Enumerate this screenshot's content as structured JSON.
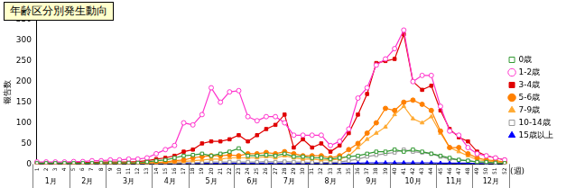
{
  "chart_data": {
    "type": "line",
    "title": "年齢区分別発生動向",
    "y_label": "報告数",
    "x_label": "(週)",
    "categories": [
      "1",
      "2",
      "3",
      "4",
      "5",
      "6",
      "7",
      "8",
      "9",
      "10",
      "11",
      "12",
      "13",
      "14",
      "15",
      "16",
      "17",
      "18",
      "19",
      "20",
      "21",
      "22",
      "23",
      "24",
      "25",
      "26",
      "27",
      "28",
      "29",
      "30",
      "31",
      "32",
      "33",
      "34",
      "35",
      "36",
      "37",
      "38",
      "39",
      "40",
      "41",
      "42",
      "43",
      "44",
      "45",
      "46",
      "47",
      "48",
      "49",
      "50",
      "51",
      "52"
    ],
    "months": [
      {
        "label": "1月",
        "weeks": [
          1,
          4
        ]
      },
      {
        "label": "2月",
        "weeks": [
          5,
          8
        ]
      },
      {
        "label": "3月",
        "weeks": [
          9,
          13
        ]
      },
      {
        "label": "4月",
        "weeks": [
          14,
          17
        ]
      },
      {
        "label": "5月",
        "weeks": [
          18,
          22
        ]
      },
      {
        "label": "6月",
        "weeks": [
          23,
          26
        ]
      },
      {
        "label": "7月",
        "weeks": [
          27,
          30
        ]
      },
      {
        "label": "8月",
        "weeks": [
          31,
          35
        ]
      },
      {
        "label": "9月",
        "weeks": [
          36,
          39
        ]
      },
      {
        "label": "10月",
        "weeks": [
          40,
          44
        ]
      },
      {
        "label": "11月",
        "weeks": [
          45,
          48
        ]
      },
      {
        "label": "12月",
        "weeks": [
          49,
          52
        ]
      }
    ],
    "series": [
      {
        "name": "0歳",
        "color": "#339933",
        "marker": "square-open",
        "values": [
          2,
          2,
          2,
          2,
          2,
          2,
          2,
          3,
          3,
          3,
          3,
          3,
          5,
          8,
          10,
          15,
          20,
          22,
          25,
          20,
          25,
          30,
          38,
          20,
          20,
          22,
          20,
          25,
          18,
          18,
          15,
          15,
          12,
          15,
          18,
          20,
          25,
          30,
          30,
          35,
          30,
          35,
          30,
          25,
          20,
          15,
          10,
          8,
          5,
          5,
          3,
          2
        ]
      },
      {
        "name": "1-2歳",
        "color": "#ff33cc",
        "marker": "circle-open",
        "values": [
          5,
          5,
          5,
          5,
          6,
          6,
          8,
          8,
          10,
          10,
          12,
          12,
          15,
          25,
          35,
          45,
          100,
          95,
          120,
          185,
          150,
          175,
          178,
          115,
          105,
          115,
          115,
          100,
          70,
          70,
          70,
          70,
          45,
          55,
          85,
          160,
          185,
          240,
          255,
          280,
          325,
          200,
          215,
          215,
          140,
          80,
          70,
          40,
          25,
          20,
          15,
          10
        ]
      },
      {
        "name": "3-4歳",
        "color": "#e00000",
        "marker": "square",
        "values": [
          3,
          3,
          3,
          3,
          4,
          4,
          4,
          5,
          5,
          5,
          5,
          6,
          8,
          12,
          15,
          20,
          30,
          35,
          50,
          55,
          55,
          60,
          70,
          55,
          70,
          85,
          95,
          120,
          40,
          60,
          40,
          50,
          30,
          45,
          75,
          120,
          170,
          245,
          250,
          255,
          315,
          200,
          180,
          190,
          130,
          85,
          65,
          55,
          30,
          20,
          15,
          10
        ]
      },
      {
        "name": "5-6歳",
        "color": "#ff8000",
        "marker": "circle",
        "values": [
          1,
          1,
          1,
          1,
          1,
          1,
          2,
          2,
          2,
          2,
          2,
          3,
          3,
          4,
          5,
          8,
          10,
          15,
          18,
          20,
          20,
          22,
          20,
          25,
          25,
          28,
          25,
          30,
          25,
          20,
          20,
          20,
          15,
          20,
          35,
          50,
          75,
          100,
          135,
          130,
          150,
          155,
          145,
          130,
          80,
          40,
          40,
          25,
          15,
          10,
          8,
          5
        ]
      },
      {
        "name": "7-9歳",
        "color": "#ffaa33",
        "marker": "triangle",
        "values": [
          1,
          1,
          1,
          1,
          1,
          1,
          1,
          1,
          1,
          1,
          2,
          2,
          2,
          3,
          4,
          5,
          6,
          8,
          10,
          12,
          12,
          15,
          15,
          15,
          15,
          18,
          15,
          20,
          15,
          12,
          12,
          10,
          10,
          12,
          20,
          40,
          60,
          75,
          90,
          120,
          140,
          110,
          100,
          115,
          75,
          40,
          30,
          20,
          10,
          8,
          5,
          3
        ]
      },
      {
        "name": "10-14歳",
        "color": "#999999",
        "marker": "square-open",
        "values": [
          0,
          0,
          0,
          0,
          0,
          0,
          0,
          0,
          0,
          0,
          1,
          1,
          1,
          1,
          2,
          2,
          3,
          3,
          4,
          5,
          5,
          5,
          5,
          5,
          5,
          6,
          5,
          6,
          5,
          5,
          4,
          4,
          4,
          5,
          8,
          12,
          18,
          22,
          25,
          28,
          35,
          30,
          28,
          25,
          18,
          12,
          10,
          8,
          5,
          3,
          2,
          1
        ]
      },
      {
        "name": "15歳以上",
        "color": "#0000ff",
        "marker": "triangle",
        "values": [
          1,
          1,
          1,
          1,
          1,
          1,
          1,
          1,
          1,
          1,
          1,
          1,
          1,
          1,
          1,
          2,
          2,
          2,
          2,
          2,
          2,
          2,
          2,
          2,
          2,
          2,
          2,
          2,
          2,
          2,
          2,
          2,
          2,
          2,
          2,
          2,
          3,
          3,
          3,
          3,
          3,
          3,
          3,
          3,
          2,
          2,
          2,
          2,
          1,
          1,
          1,
          1
        ]
      }
    ],
    "ylim": [
      0,
      350
    ],
    "yticks": [
      0,
      50,
      100,
      150,
      200,
      250,
      300,
      350
    ],
    "grid": false,
    "legend": "right"
  }
}
